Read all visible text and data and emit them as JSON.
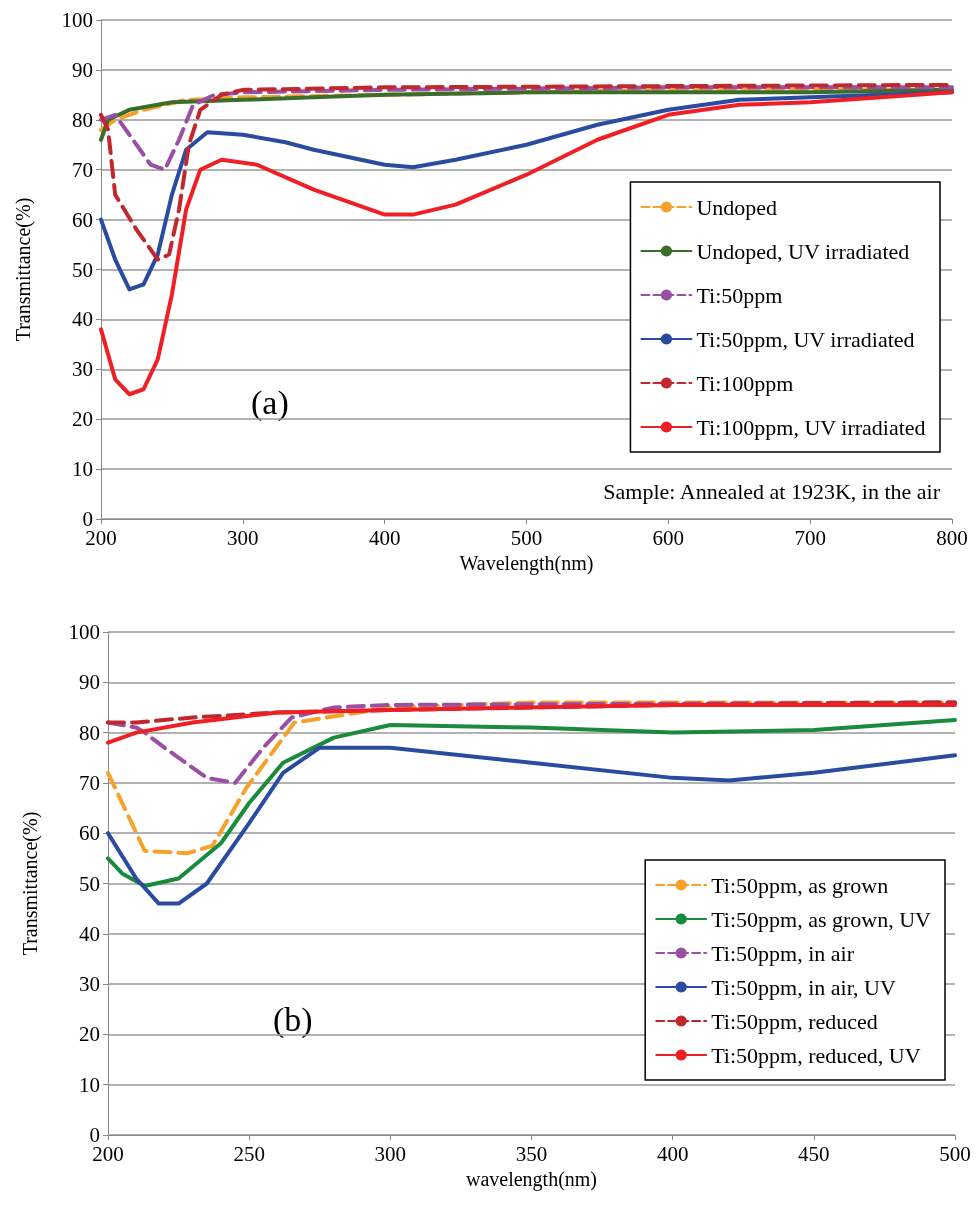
{
  "chart_data": [
    {
      "type": "line",
      "xlabel": "Wavelength(nm)",
      "ylabel": "Transmittance(%)",
      "xlim": [
        200,
        800
      ],
      "xticks": [
        200,
        300,
        400,
        500,
        600,
        700,
        800
      ],
      "ylim": [
        0,
        100
      ],
      "yticks": [
        0,
        10,
        20,
        30,
        40,
        50,
        60,
        70,
        80,
        90,
        100
      ],
      "grid": "y",
      "legend": "right",
      "annotations": [
        "(a)",
        "Sample: Annealed at 1923K, in the air"
      ],
      "series": [
        {
          "name": "Undoped",
          "color": "#f7a12a",
          "line_style": "dashed",
          "x": [
            200,
            210,
            230,
            260,
            300,
            400,
            500,
            600,
            700,
            800
          ],
          "values": [
            78,
            80,
            82,
            84,
            84.5,
            85,
            85.5,
            86,
            86,
            86
          ]
        },
        {
          "name": "Undoped, UV irradiated",
          "color": "#3b6e2a",
          "line_style": "solid",
          "x": [
            200,
            205,
            220,
            250,
            300,
            350,
            400,
            500,
            600,
            700,
            800
          ],
          "values": [
            76,
            80,
            82,
            83.5,
            84,
            84.5,
            85,
            85.5,
            85.5,
            85.5,
            86
          ]
        },
        {
          "name": "Ti:50ppm",
          "color": "#9a4fa5",
          "line_style": "dashed",
          "x": [
            200,
            210,
            220,
            235,
            245,
            255,
            265,
            280,
            300,
            400,
            600,
            800
          ],
          "values": [
            80,
            81,
            77,
            71,
            70,
            76,
            83,
            85,
            85.5,
            86,
            86.5,
            86.5
          ]
        },
        {
          "name": "Ti:50ppm, UV irradiated",
          "color": "#2a4ba0",
          "line_style": "solid",
          "x": [
            200,
            210,
            220,
            230,
            240,
            250,
            260,
            275,
            300,
            330,
            350,
            400,
            420,
            450,
            500,
            550,
            600,
            650,
            700,
            800
          ],
          "values": [
            60,
            52,
            46,
            47,
            53,
            65,
            74,
            77.5,
            77,
            75.5,
            74,
            71,
            70.5,
            72,
            75,
            79,
            82,
            84,
            84.5,
            85.5
          ]
        },
        {
          "name": "Ti:100ppm",
          "color": "#c0282d",
          "line_style": "dashed",
          "x": [
            200,
            205,
            210,
            225,
            240,
            248,
            255,
            262,
            270,
            285,
            300,
            400,
            800
          ],
          "values": [
            81,
            78,
            65,
            58,
            52,
            53,
            62,
            75,
            82,
            85,
            86,
            86.5,
            87
          ]
        },
        {
          "name": "Ti:100ppm, UV irradiated",
          "color": "#ee2026",
          "line_style": "solid",
          "x": [
            200,
            210,
            220,
            230,
            240,
            250,
            260,
            270,
            285,
            310,
            350,
            400,
            420,
            450,
            500,
            550,
            600,
            650,
            700,
            800
          ],
          "values": [
            38,
            28,
            25,
            26,
            32,
            45,
            62,
            70,
            72,
            71,
            66,
            61,
            61,
            63,
            69,
            76,
            81,
            83,
            83.5,
            85.5
          ]
        }
      ]
    },
    {
      "type": "line",
      "xlabel": "wavelength(nm)",
      "ylabel": "Transmittance(%)",
      "xlim": [
        200,
        500
      ],
      "xticks": [
        200,
        250,
        300,
        350,
        400,
        450,
        500
      ],
      "ylim": [
        0,
        100
      ],
      "yticks": [
        0,
        10,
        20,
        30,
        40,
        50,
        60,
        70,
        80,
        90,
        100
      ],
      "grid": "y",
      "legend": "right",
      "annotations": [
        "(b)"
      ],
      "series": [
        {
          "name": "Ti:50ppm, as grown",
          "color": "#f7a12a",
          "line_style": "dashed",
          "x": [
            200,
            213,
            228,
            237,
            249,
            266,
            300,
            350,
            400,
            500
          ],
          "values": [
            72,
            56.5,
            56,
            57.5,
            69,
            82,
            85,
            86,
            86,
            86
          ]
        },
        {
          "name": "Ti:50ppm, as grown, UV",
          "color": "#1a8a3c",
          "line_style": "solid",
          "x": [
            200,
            205,
            213,
            225,
            240,
            250,
            262,
            280,
            300,
            350,
            400,
            450,
            500
          ],
          "values": [
            55,
            52,
            49.5,
            51,
            58,
            66,
            74,
            79,
            81.5,
            81,
            80,
            80.5,
            82.5
          ]
        },
        {
          "name": "Ti:50ppm, in air",
          "color": "#9a4fa5",
          "line_style": "dashed",
          "x": [
            200,
            210,
            213,
            220,
            235,
            245,
            255,
            265,
            280,
            300,
            500
          ],
          "values": [
            82,
            81,
            80,
            77,
            71,
            70,
            77,
            83,
            85,
            85.5,
            86
          ]
        },
        {
          "name": "Ti:50ppm, in air, UV",
          "color": "#2a4ba0",
          "line_style": "solid",
          "x": [
            200,
            210,
            218,
            225,
            235,
            250,
            262,
            275,
            300,
            350,
            400,
            420,
            450,
            500
          ],
          "values": [
            60,
            51,
            46,
            46,
            50,
            62,
            72,
            77,
            77,
            74,
            71,
            70.5,
            72,
            75.5
          ]
        },
        {
          "name": "Ti:50ppm, reduced",
          "color": "#c0282d",
          "line_style": "dashed",
          "x": [
            200,
            210,
            230,
            260,
            300,
            400,
            500
          ],
          "values": [
            82,
            82,
            83,
            84,
            84.5,
            85.5,
            86
          ]
        },
        {
          "name": "Ti:50ppm, reduced, UV",
          "color": "#ee2026",
          "line_style": "solid",
          "x": [
            200,
            210,
            230,
            260,
            300,
            400,
            500
          ],
          "values": [
            78,
            80,
            82,
            84,
            84.5,
            85.5,
            85.5
          ]
        }
      ]
    }
  ]
}
